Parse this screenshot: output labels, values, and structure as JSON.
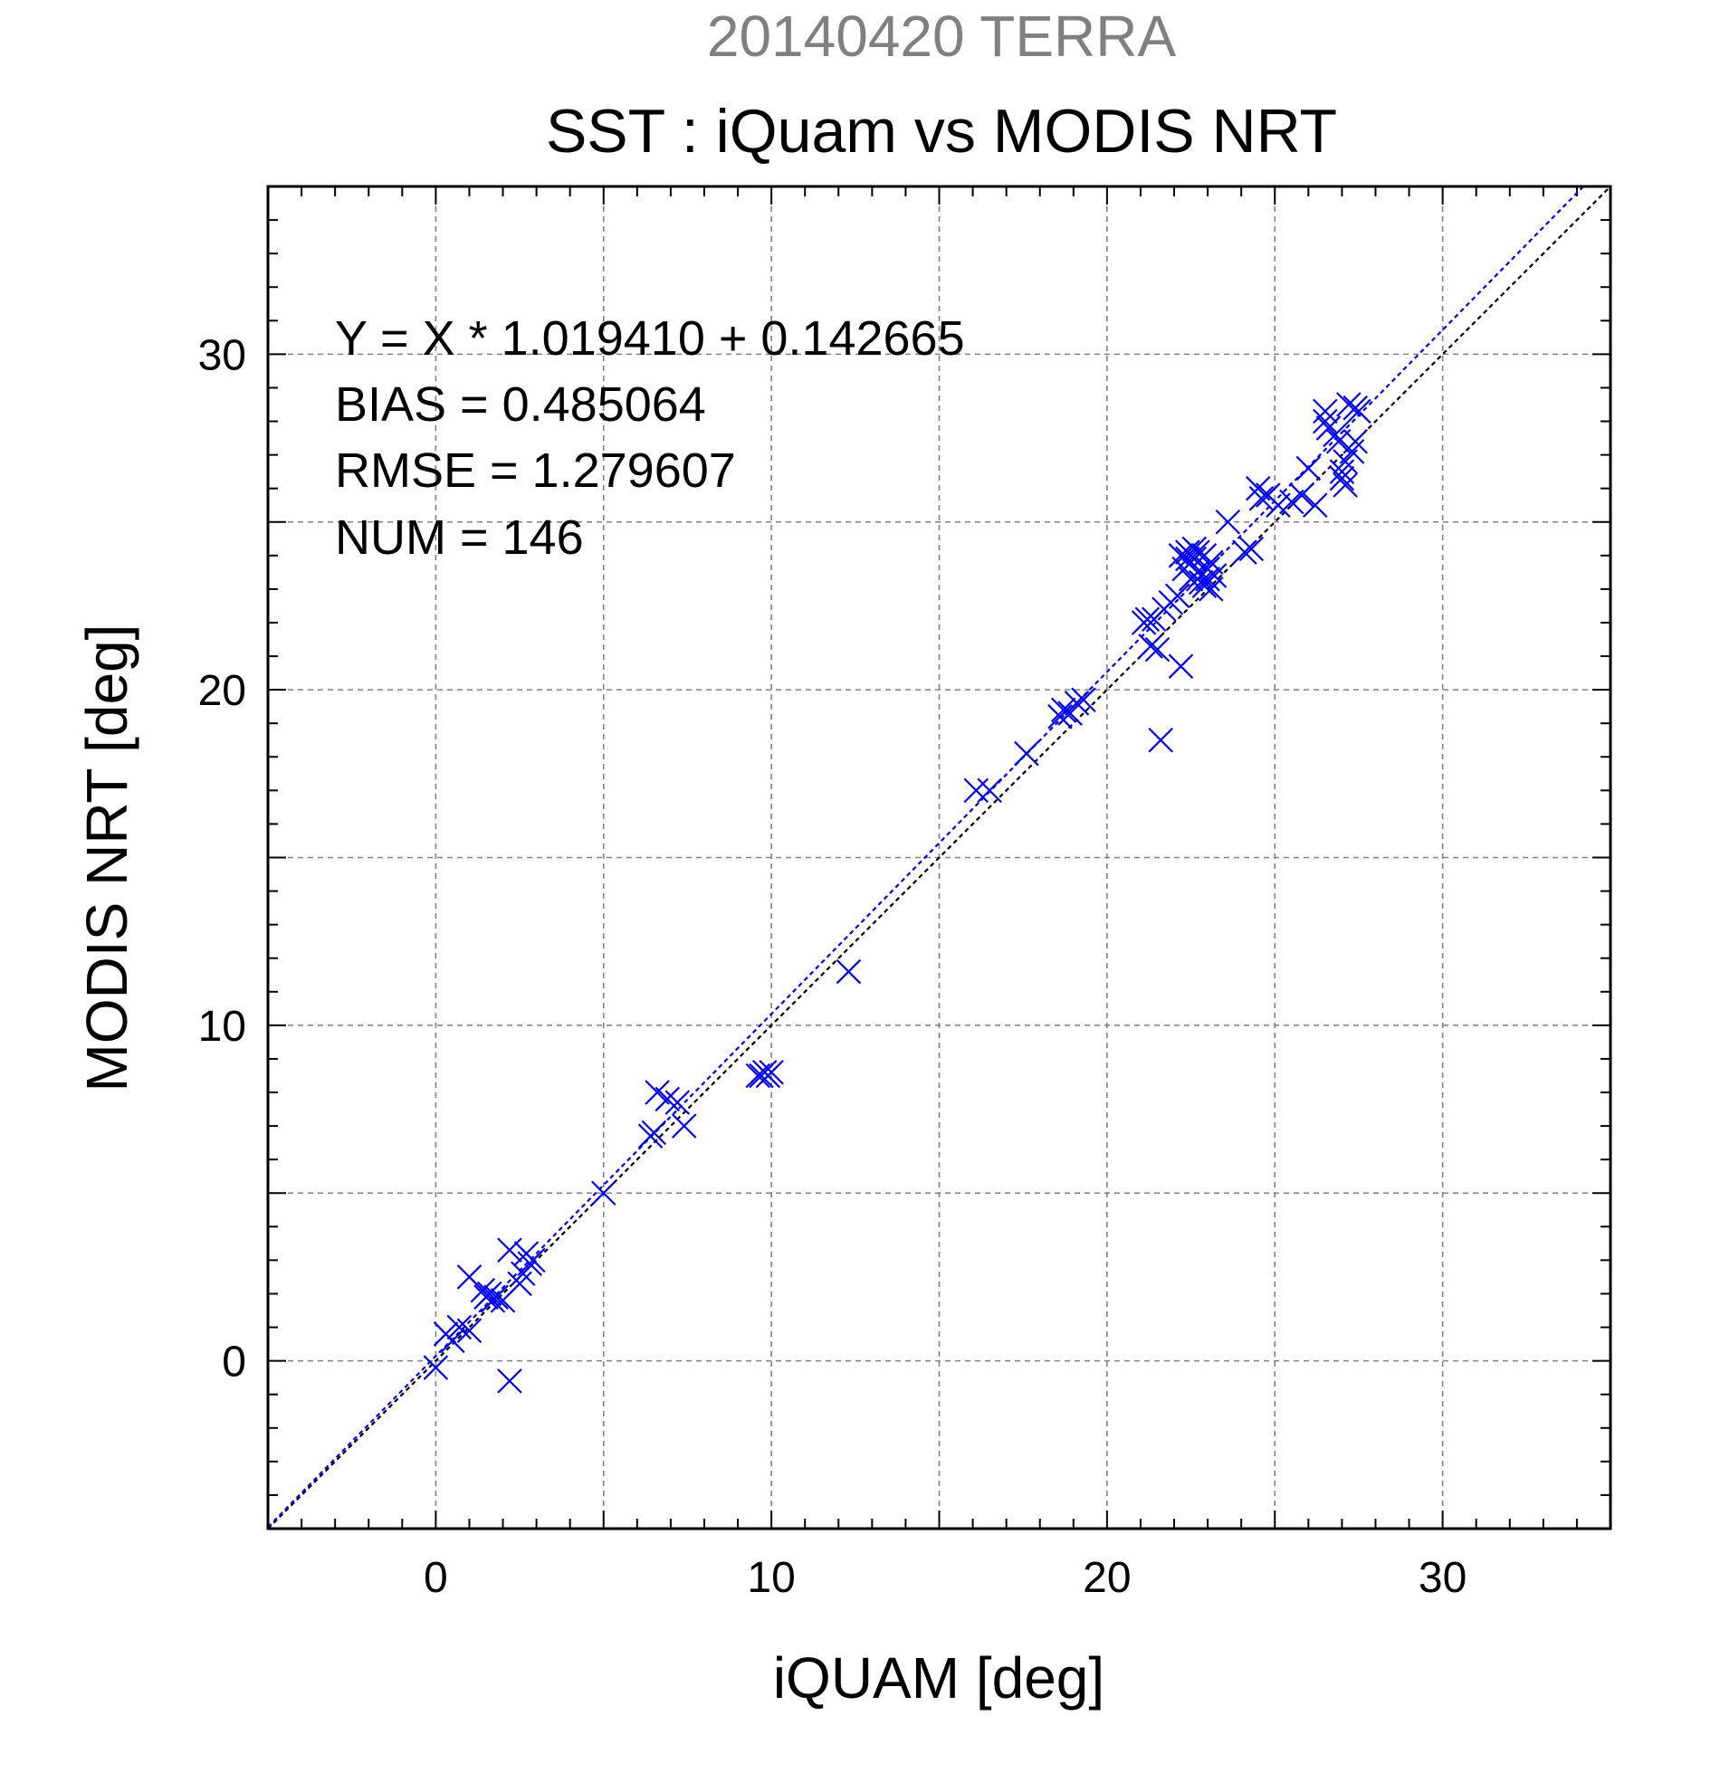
{
  "chart_data": {
    "type": "scatter",
    "supertitle": "20140420 TERRA",
    "title": "SST : iQuam vs MODIS NRT",
    "xlabel": "iQUAM [deg]",
    "ylabel": "MODIS NRT [deg]",
    "xlim": [
      -5,
      35
    ],
    "ylim": [
      -5,
      35
    ],
    "x_ticks": [
      0,
      10,
      20,
      30
    ],
    "y_ticks": [
      0,
      10,
      20,
      30
    ],
    "grid": true,
    "stats": [
      "Y = X * 1.019410 + 0.142665",
      "BIAS = 0.485064",
      "RMSE = 1.279607",
      "NUM = 146"
    ],
    "fit_line": {
      "slope": 1.01941,
      "intercept": 0.142665
    },
    "identity_line": {
      "slope": 1,
      "intercept": 0
    },
    "colors": {
      "points": "#0000ff",
      "fit_line": "#0000ff",
      "identity_line": "#000000",
      "supertitle": "#808080",
      "grid": "#808080"
    },
    "marker": "x",
    "points": [
      [
        0.0,
        -0.2
      ],
      [
        0.3,
        0.8
      ],
      [
        0.5,
        0.6
      ],
      [
        0.7,
        1.0
      ],
      [
        1.0,
        0.9
      ],
      [
        1.0,
        2.5
      ],
      [
        1.4,
        2.1
      ],
      [
        1.5,
        1.9
      ],
      [
        1.6,
        2.0
      ],
      [
        1.7,
        1.8
      ],
      [
        1.8,
        1.9
      ],
      [
        2.0,
        1.8
      ],
      [
        2.2,
        -0.6
      ],
      [
        2.2,
        3.3
      ],
      [
        2.5,
        2.3
      ],
      [
        2.6,
        2.6
      ],
      [
        2.7,
        3.2
      ],
      [
        2.8,
        2.9
      ],
      [
        2.9,
        3.0
      ],
      [
        5.0,
        5.0
      ],
      [
        6.4,
        6.7
      ],
      [
        6.5,
        6.8
      ],
      [
        6.6,
        8.0
      ],
      [
        6.9,
        7.8
      ],
      [
        7.2,
        7.7
      ],
      [
        7.4,
        7.0
      ],
      [
        9.6,
        8.5
      ],
      [
        9.7,
        8.5
      ],
      [
        9.8,
        8.6
      ],
      [
        9.9,
        8.5
      ],
      [
        10.0,
        8.6
      ],
      [
        12.3,
        11.6
      ],
      [
        16.1,
        17.0
      ],
      [
        16.5,
        17.0
      ],
      [
        17.6,
        18.1
      ],
      [
        18.6,
        19.2
      ],
      [
        18.7,
        19.4
      ],
      [
        18.9,
        19.3
      ],
      [
        19.1,
        19.6
      ],
      [
        19.3,
        19.7
      ],
      [
        21.1,
        22.0
      ],
      [
        21.2,
        22.1
      ],
      [
        21.4,
        22.1
      ],
      [
        21.3,
        21.3
      ],
      [
        21.5,
        21.2
      ],
      [
        21.6,
        18.5
      ],
      [
        21.7,
        22.4
      ],
      [
        21.9,
        22.6
      ],
      [
        22.1,
        22.8
      ],
      [
        22.2,
        24.0
      ],
      [
        22.2,
        20.7
      ],
      [
        22.3,
        23.6
      ],
      [
        22.4,
        23.9
      ],
      [
        22.5,
        23.3
      ],
      [
        22.6,
        24.2
      ],
      [
        22.7,
        23.5
      ],
      [
        22.8,
        23.2
      ],
      [
        22.9,
        24.0
      ],
      [
        23.0,
        23.6
      ],
      [
        23.1,
        23.8
      ],
      [
        22.6,
        23.9
      ],
      [
        22.4,
        24.1
      ],
      [
        22.5,
        23.8
      ],
      [
        22.7,
        24.1
      ],
      [
        22.8,
        23.4
      ],
      [
        22.9,
        23.1
      ],
      [
        23.0,
        23.3
      ],
      [
        23.2,
        23.4
      ],
      [
        23.1,
        23.0
      ],
      [
        23.6,
        25.0
      ],
      [
        24.1,
        24.1
      ],
      [
        24.3,
        24.2
      ],
      [
        24.5,
        26.0
      ],
      [
        24.6,
        25.7
      ],
      [
        24.8,
        25.8
      ],
      [
        25.1,
        25.5
      ],
      [
        25.5,
        25.6
      ],
      [
        25.8,
        25.8
      ],
      [
        26.0,
        26.6
      ],
      [
        26.2,
        25.5
      ],
      [
        26.5,
        28.0
      ],
      [
        26.5,
        28.3
      ],
      [
        26.6,
        27.8
      ],
      [
        26.8,
        27.6
      ],
      [
        26.9,
        27.4
      ],
      [
        27.0,
        26.5
      ],
      [
        27.0,
        26.3
      ],
      [
        27.1,
        26.8
      ],
      [
        27.1,
        26.1
      ],
      [
        27.2,
        28.5
      ],
      [
        27.3,
        27.1
      ],
      [
        27.4,
        27.4
      ],
      [
        27.4,
        28.4
      ],
      [
        27.5,
        28.3
      ]
    ]
  }
}
